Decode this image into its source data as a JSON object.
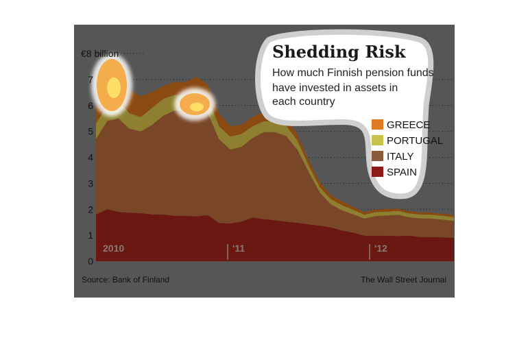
{
  "chart_data": {
    "type": "area",
    "stacked": true,
    "title": "Shedding Risk",
    "subtitle": "How much Finnish pension funds have invested in assets in each country",
    "y_unit_label": "€8 billion",
    "ylim": [
      0,
      8
    ],
    "y_ticks": [
      "0",
      "1",
      "2",
      "3",
      "4",
      "5",
      "6",
      "7"
    ],
    "x_tick_labels": [
      "2010",
      "'11",
      "'12"
    ],
    "x": [
      "Jan 2010",
      "Feb 2010",
      "Mar 2010",
      "Apr 2010",
      "May 2010",
      "Jun 2010",
      "Jul 2010",
      "Aug 2010",
      "Sep 2010",
      "Oct 2010",
      "Nov 2010",
      "Dec 2010",
      "Jan 2011",
      "Feb 2011",
      "Mar 2011",
      "Apr 2011",
      "May 2011",
      "Jun 2011",
      "Jul 2011",
      "Aug 2011",
      "Sep 2011",
      "Oct 2011",
      "Nov 2011",
      "Dec 2011",
      "Jan 2012",
      "Feb 2012",
      "Mar 2012",
      "Apr 2012",
      "May 2012",
      "Jun 2012",
      "Jul 2012",
      "Aug 2012",
      "Sep 2012"
    ],
    "series": [
      {
        "name": "SPAIN",
        "color": "#6b1812",
        "values": [
          1.8,
          2.0,
          1.9,
          1.87,
          1.85,
          1.8,
          1.8,
          1.75,
          1.75,
          1.73,
          1.78,
          1.47,
          1.45,
          1.53,
          1.68,
          1.62,
          1.58,
          1.52,
          1.48,
          1.42,
          1.37,
          1.3,
          1.18,
          1.1,
          0.98,
          0.98,
          0.98,
          0.97,
          0.98,
          0.93,
          0.93,
          0.92,
          0.9
        ]
      },
      {
        "name": "ITALY",
        "color": "#7a4628",
        "values": [
          2.9,
          3.4,
          3.6,
          3.23,
          3.15,
          3.45,
          3.8,
          4.05,
          4.05,
          4.27,
          3.92,
          3.23,
          2.85,
          2.87,
          3.07,
          3.35,
          3.39,
          3.3,
          2.82,
          2.03,
          1.28,
          0.89,
          0.78,
          0.7,
          0.66,
          0.76,
          0.78,
          0.82,
          0.71,
          0.72,
          0.71,
          0.68,
          0.65
        ]
      },
      {
        "name": "PORTUGAL",
        "color": "#8e8030",
        "values": [
          0.6,
          0.6,
          0.7,
          0.6,
          0.55,
          0.65,
          0.65,
          0.6,
          0.6,
          0.58,
          0.6,
          0.5,
          0.5,
          0.5,
          0.45,
          0.42,
          0.42,
          0.4,
          0.35,
          0.25,
          0.2,
          0.2,
          0.2,
          0.18,
          0.15,
          0.15,
          0.15,
          0.15,
          0.15,
          0.15,
          0.15,
          0.15,
          0.15
        ]
      },
      {
        "name": "GREECE",
        "color": "#8a4a12",
        "values": [
          0.7,
          1.3,
          1.0,
          0.9,
          0.8,
          0.6,
          0.5,
          0.5,
          0.5,
          0.52,
          0.5,
          0.5,
          0.4,
          0.35,
          0.35,
          0.35,
          0.3,
          0.3,
          0.25,
          0.2,
          0.2,
          0.15,
          0.15,
          0.12,
          0.1,
          0.1,
          0.1,
          0.08,
          0.08,
          0.08,
          0.08,
          0.08,
          0.08
        ]
      }
    ],
    "legend_order": [
      "GREECE",
      "PORTUGAL",
      "ITALY",
      "SPAIN"
    ],
    "legend_placement": "right",
    "grid": "dotted horizontal",
    "source": "Source: Bank of Finland",
    "publisher": "The Wall Street Journal"
  }
}
